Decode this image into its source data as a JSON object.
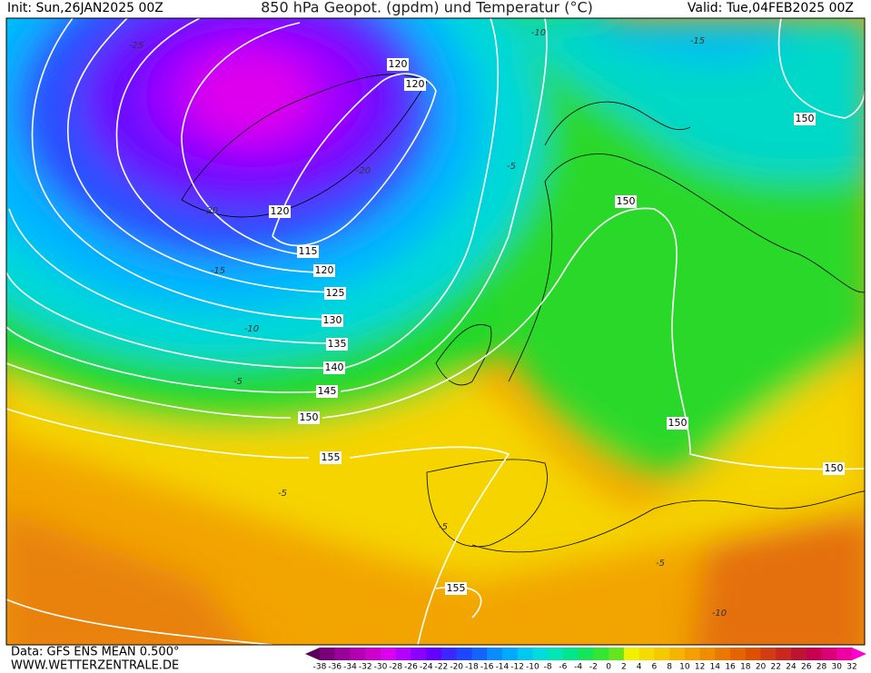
{
  "header": {
    "init": "Init: Sun,26JAN2025 00Z",
    "title": "850 hPa Geopot. (gpdm) und Temperatur (°C)",
    "valid": "Valid: Tue,04FEB2025 00Z"
  },
  "footer": {
    "source": "Data: GFS ENS MEAN 0.500°",
    "website": "WWW.WETTERZENTRALE.DE"
  },
  "map": {
    "geopotential_labels": [
      120,
      120,
      120,
      115,
      120,
      125,
      130,
      135,
      140,
      145,
      150,
      155,
      150,
      150,
      150,
      150,
      155
    ],
    "temperature_labels": [
      -10,
      -15,
      -25,
      -20,
      -5,
      -20,
      -15,
      -10,
      -5,
      -5,
      -5,
      -5,
      -10
    ]
  },
  "legend": {
    "ticks": [
      -38,
      -36,
      -34,
      -32,
      -30,
      -28,
      -26,
      -24,
      -22,
      -20,
      -18,
      -16,
      -14,
      -12,
      -10,
      -8,
      -6,
      -4,
      -2,
      0,
      2,
      4,
      6,
      8,
      10,
      12,
      14,
      16,
      18,
      20,
      22,
      24,
      26,
      28,
      30,
      32
    ],
    "colors": [
      "#5a005a",
      "#7a007a",
      "#9a009a",
      "#b400b4",
      "#cc00cc",
      "#dd00ee",
      "#b400ff",
      "#8c00ff",
      "#6400ff",
      "#3c28ff",
      "#1e46ff",
      "#1464ff",
      "#0a8cff",
      "#00aaff",
      "#00c8f0",
      "#00dcdc",
      "#00e6b4",
      "#00e68c",
      "#14e65a",
      "#32e632",
      "#64e61e",
      "#f0f000",
      "#f5dc00",
      "#f5c800",
      "#f5b400",
      "#f5a000",
      "#f08c00",
      "#eb7800",
      "#e66400",
      "#dc5000",
      "#d23c14",
      "#c8281e",
      "#be1432",
      "#c80050",
      "#dc0078",
      "#f000a0",
      "#ff00d2"
    ]
  }
}
